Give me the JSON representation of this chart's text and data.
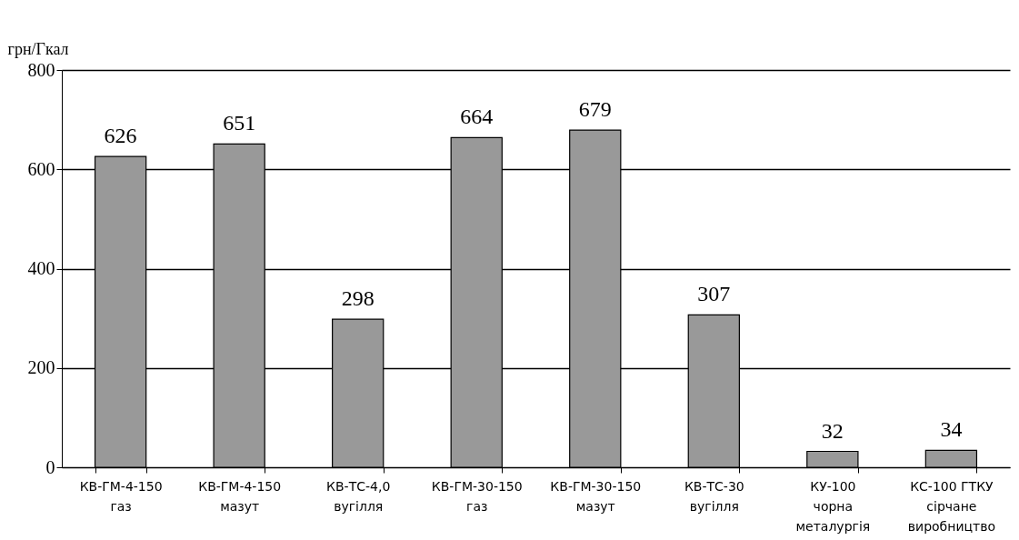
{
  "chart_data": {
    "type": "bar",
    "ylabel": "грн/Гкал",
    "categories": [
      "КВ-ГМ-4-150\nгаз",
      "КВ-ГМ-4-150\nмазут",
      "КВ-ТС-4,0\nвугілля",
      "КВ-ГМ-30-150\nгаз",
      "КВ-ГМ-30-150\nмазут",
      "КВ-ТС-30\nвугілля",
      "КУ-100\nчорна\nметалургія",
      "КС-100 ГТКУ\nсірчане\nвиробництво"
    ],
    "values": [
      626,
      651,
      298,
      664,
      679,
      307,
      32,
      34
    ],
    "color": "#999999",
    "ylim": [
      0,
      800
    ],
    "yticks": [
      0,
      200,
      400,
      600,
      800
    ],
    "grid": "y",
    "data_labels": true
  }
}
